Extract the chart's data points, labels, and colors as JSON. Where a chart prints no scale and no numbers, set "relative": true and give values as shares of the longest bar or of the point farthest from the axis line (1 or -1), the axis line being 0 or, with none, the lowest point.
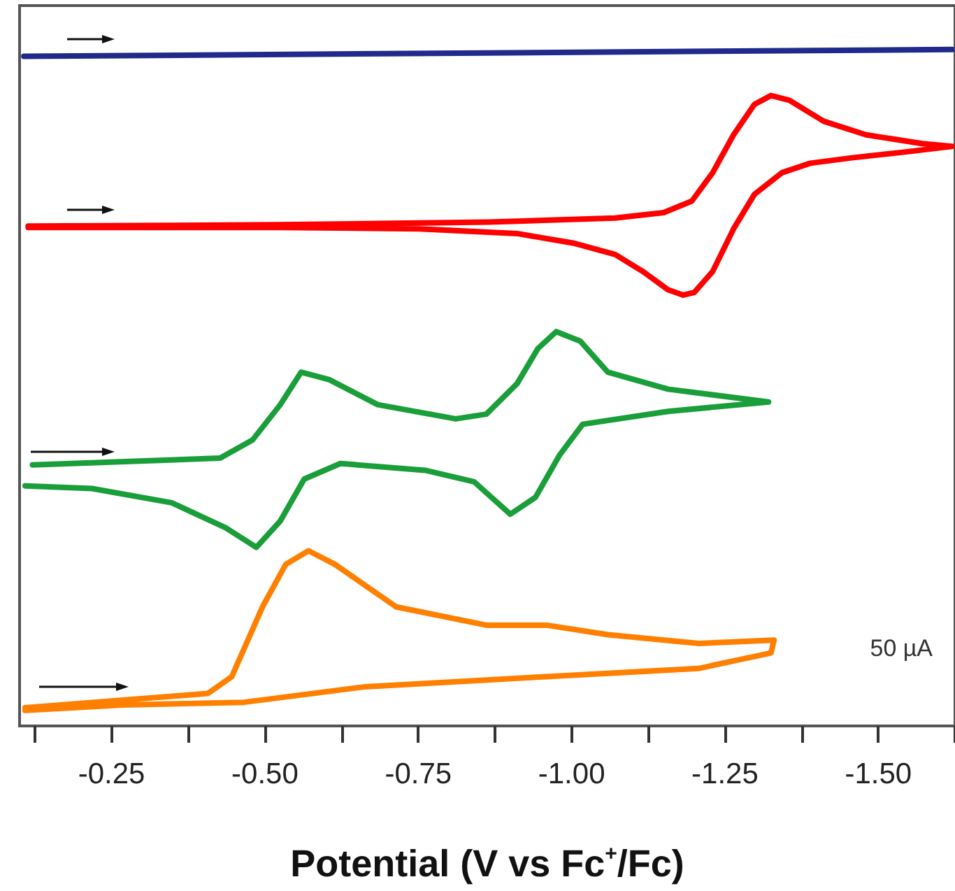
{
  "chart_data": {
    "type": "line",
    "relative": true,
    "xlabel": "Potential (V vs Fc$^{+}$/Fc)",
    "xlim": [
      -0.1,
      -1.625
    ],
    "xticks": [
      {
        "value": -0.125,
        "label": null
      },
      {
        "value": -0.25,
        "label": "-0.25"
      },
      {
        "value": -0.375,
        "label": null
      },
      {
        "value": -0.5,
        "label": "-0.50"
      },
      {
        "value": -0.625,
        "label": null
      },
      {
        "value": -0.75,
        "label": "-0.75"
      },
      {
        "value": -0.875,
        "label": null
      },
      {
        "value": -1.0,
        "label": "-1.00"
      },
      {
        "value": -1.125,
        "label": null
      },
      {
        "value": -1.25,
        "label": "-1.25"
      },
      {
        "value": -1.375,
        "label": null
      },
      {
        "value": -1.5,
        "label": "-1.50"
      },
      {
        "value": -1.625,
        "label": null
      }
    ],
    "grid": false,
    "marker": "none",
    "line_style": "solid",
    "annotations": [
      "50 µA"
    ],
    "series": [
      {
        "color": "#1f2a8c",
        "x": [
          -0.107,
          -0.86,
          -1.62
        ],
        "values": [
          0.99,
          0.995,
          1.0
        ]
      },
      {
        "color": "#ff0000",
        "x": [
          -0.114,
          -0.525,
          -0.866,
          -1.071,
          -1.15,
          -1.196,
          -1.23,
          -1.264,
          -1.298,
          -1.325,
          -1.355,
          -1.411,
          -1.48,
          -1.571,
          -1.62,
          -1.548,
          -1.457,
          -1.389,
          -1.343,
          -1.298,
          -1.264,
          -1.23,
          -1.2,
          -1.182,
          -1.157,
          -1.116,
          -1.071,
          -1.002,
          -0.911,
          -0.752,
          -0.525,
          -0.114
        ],
        "values": [
          0.739,
          0.741,
          0.745,
          0.751,
          0.759,
          0.776,
          0.818,
          0.874,
          0.919,
          0.932,
          0.925,
          0.894,
          0.874,
          0.861,
          0.857,
          0.849,
          0.84,
          0.832,
          0.818,
          0.786,
          0.735,
          0.672,
          0.641,
          0.637,
          0.645,
          0.672,
          0.697,
          0.714,
          0.728,
          0.735,
          0.737,
          0.737
        ]
      },
      {
        "color": "#1a9e3a",
        "x": [
          -0.121,
          -0.427,
          -0.48,
          -0.525,
          -0.559,
          -0.605,
          -0.684,
          -0.811,
          -0.861,
          -0.911,
          -0.945,
          -0.975,
          -1.014,
          -1.059,
          -1.157,
          -1.321,
          -1.157,
          -1.018,
          -0.98,
          -0.941,
          -0.9,
          -0.841,
          -0.761,
          -0.623,
          -0.564,
          -0.525,
          -0.486,
          -0.436,
          -0.348,
          -0.218,
          -0.109
        ],
        "values": [
          0.386,
          0.396,
          0.423,
          0.475,
          0.523,
          0.512,
          0.475,
          0.454,
          0.461,
          0.506,
          0.558,
          0.583,
          0.569,
          0.523,
          0.498,
          0.479,
          0.465,
          0.446,
          0.4,
          0.338,
          0.313,
          0.361,
          0.378,
          0.388,
          0.365,
          0.303,
          0.264,
          0.293,
          0.33,
          0.351,
          0.355
        ]
      },
      {
        "color": "#ff8000",
        "x": [
          -0.109,
          -0.407,
          -0.446,
          -0.496,
          -0.534,
          -0.571,
          -0.614,
          -0.714,
          -0.861,
          -0.959,
          -1.059,
          -1.207,
          -1.33,
          -1.325,
          -1.207,
          -0.959,
          -0.664,
          -0.466,
          -0.268,
          -0.109
        ],
        "values": [
          0.027,
          0.048,
          0.073,
          0.176,
          0.239,
          0.259,
          0.239,
          0.176,
          0.149,
          0.149,
          0.135,
          0.122,
          0.127,
          0.108,
          0.085,
          0.073,
          0.058,
          0.035,
          0.031,
          0.023
        ]
      }
    ]
  }
}
